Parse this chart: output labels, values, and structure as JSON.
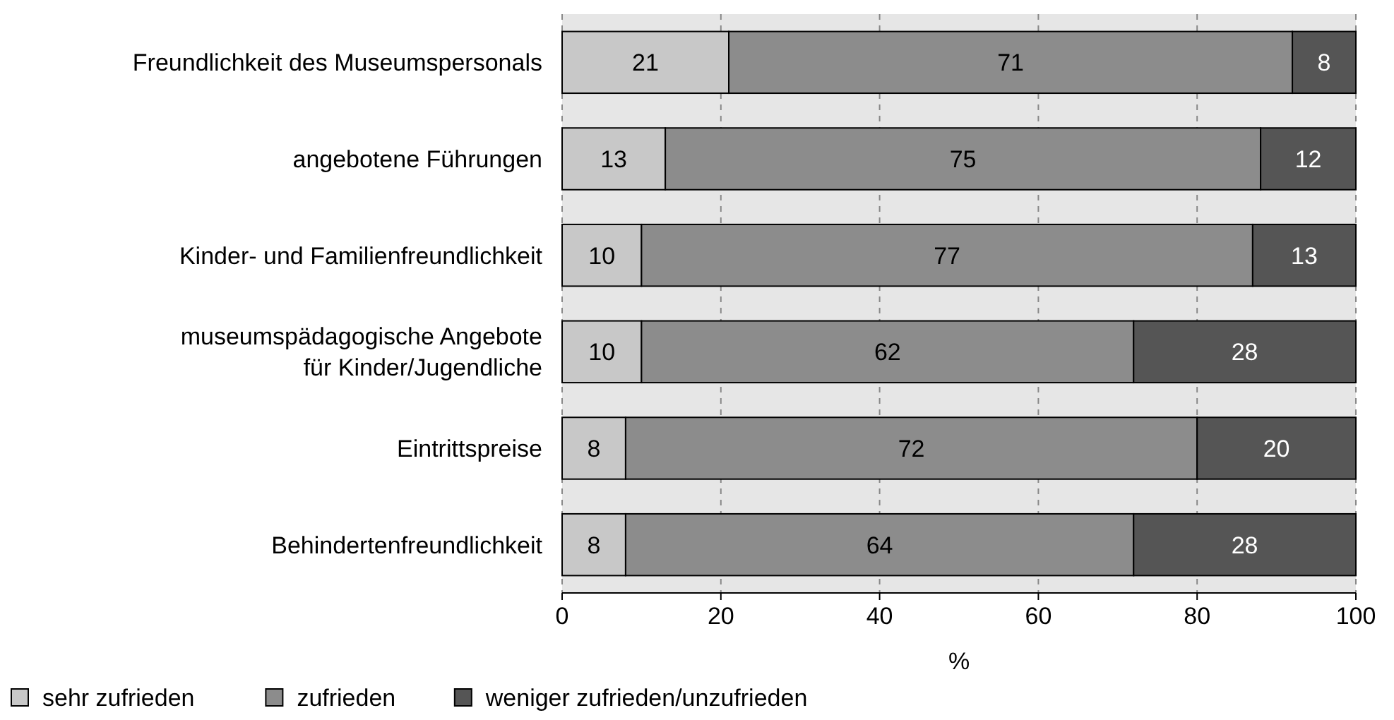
{
  "chart_data": {
    "type": "bar",
    "orientation": "horizontal",
    "stacked": true,
    "xlabel": "%",
    "categories": [
      "Freundlichkeit des Museumspersonals",
      "angebotene Führungen",
      "Kinder- und Familienfreundlichkeit",
      "museumspädagogische Angebote\nfür Kinder/Jugendliche",
      "Eintrittspreise",
      "Behindertenfreundlichkeit"
    ],
    "series": [
      {
        "name": "sehr zufrieden",
        "color": "#c8c8c8",
        "values": [
          21,
          13,
          10,
          10,
          8,
          8
        ]
      },
      {
        "name": "zufrieden",
        "color": "#8c8c8c",
        "values": [
          71,
          75,
          77,
          62,
          72,
          64
        ]
      },
      {
        "name": "weniger zufrieden/unzufrieden",
        "color": "#555555",
        "values": [
          8,
          12,
          13,
          28,
          20,
          28
        ]
      }
    ],
    "xlim": [
      0,
      100
    ],
    "xticks": [
      0,
      20,
      40,
      60,
      80,
      100
    ],
    "grid": "x",
    "data_labels": true,
    "legend": "bottom left"
  }
}
